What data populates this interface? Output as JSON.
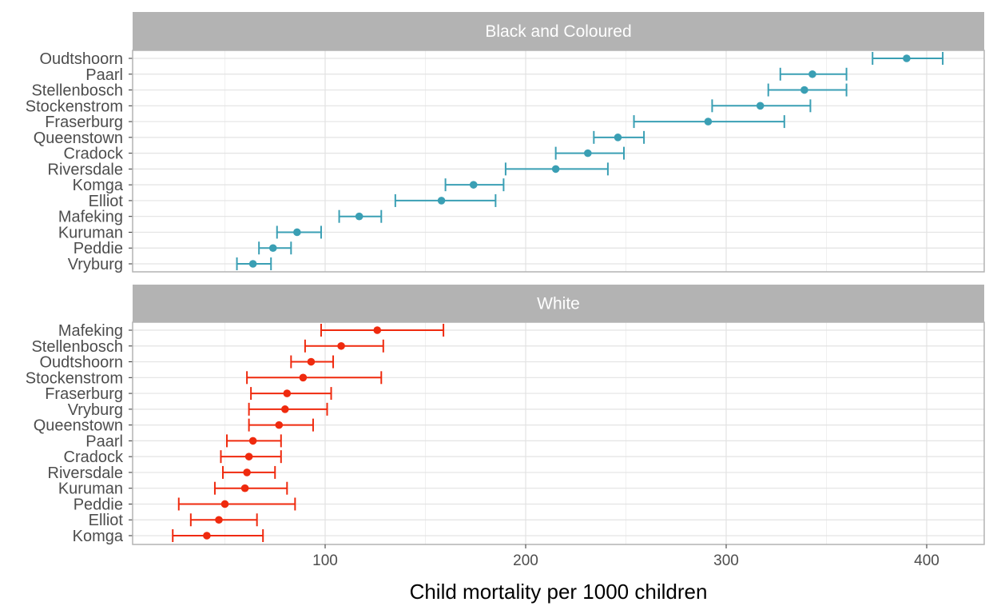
{
  "chart_data": {
    "type": "errorbar",
    "xlabel": "Child mortality per 1000 children",
    "ylabel": "",
    "xlim": [
      5,
      428
    ],
    "x_ticks": [
      100,
      200,
      300,
      400
    ],
    "grid": true,
    "panels": [
      {
        "label": "Black and Coloured",
        "color": "#3a9fb4",
        "points": [
          {
            "name": "Oudtshoorn",
            "estimate": 390,
            "lower": 373,
            "upper": 408
          },
          {
            "name": "Paarl",
            "estimate": 343,
            "lower": 327,
            "upper": 360
          },
          {
            "name": "Stellenbosch",
            "estimate": 339,
            "lower": 321,
            "upper": 360
          },
          {
            "name": "Stockenstrom",
            "estimate": 317,
            "lower": 293,
            "upper": 342
          },
          {
            "name": "Fraserburg",
            "estimate": 291,
            "lower": 254,
            "upper": 329
          },
          {
            "name": "Queenstown",
            "estimate": 246,
            "lower": 234,
            "upper": 259
          },
          {
            "name": "Cradock",
            "estimate": 231,
            "lower": 215,
            "upper": 249
          },
          {
            "name": "Riversdale",
            "estimate": 215,
            "lower": 190,
            "upper": 241
          },
          {
            "name": "Komga",
            "estimate": 174,
            "lower": 160,
            "upper": 189
          },
          {
            "name": "Elliot",
            "estimate": 158,
            "lower": 135,
            "upper": 185
          },
          {
            "name": "Mafeking",
            "estimate": 117,
            "lower": 107,
            "upper": 128
          },
          {
            "name": "Kuruman",
            "estimate": 86,
            "lower": 76,
            "upper": 98
          },
          {
            "name": "Peddie",
            "estimate": 74,
            "lower": 67,
            "upper": 83
          },
          {
            "name": "Vryburg",
            "estimate": 64,
            "lower": 56,
            "upper": 73
          }
        ]
      },
      {
        "label": "White",
        "color": "#ef2a0e",
        "points": [
          {
            "name": "Mafeking",
            "estimate": 126,
            "lower": 98,
            "upper": 159
          },
          {
            "name": "Stellenbosch",
            "estimate": 108,
            "lower": 90,
            "upper": 129
          },
          {
            "name": "Oudtshoorn",
            "estimate": 93,
            "lower": 83,
            "upper": 104
          },
          {
            "name": "Stockenstrom",
            "estimate": 89,
            "lower": 61,
            "upper": 128
          },
          {
            "name": "Fraserburg",
            "estimate": 81,
            "lower": 63,
            "upper": 103
          },
          {
            "name": "Vryburg",
            "estimate": 80,
            "lower": 62,
            "upper": 101
          },
          {
            "name": "Queenstown",
            "estimate": 77,
            "lower": 62,
            "upper": 94
          },
          {
            "name": "Paarl",
            "estimate": 64,
            "lower": 51,
            "upper": 78
          },
          {
            "name": "Cradock",
            "estimate": 62,
            "lower": 48,
            "upper": 78
          },
          {
            "name": "Riversdale",
            "estimate": 61,
            "lower": 49,
            "upper": 75
          },
          {
            "name": "Kuruman",
            "estimate": 60,
            "lower": 45,
            "upper": 81
          },
          {
            "name": "Peddie",
            "estimate": 50,
            "lower": 27,
            "upper": 85
          },
          {
            "name": "Elliot",
            "estimate": 47,
            "lower": 33,
            "upper": 66
          },
          {
            "name": "Komga",
            "estimate": 41,
            "lower": 24,
            "upper": 69
          }
        ]
      }
    ]
  }
}
